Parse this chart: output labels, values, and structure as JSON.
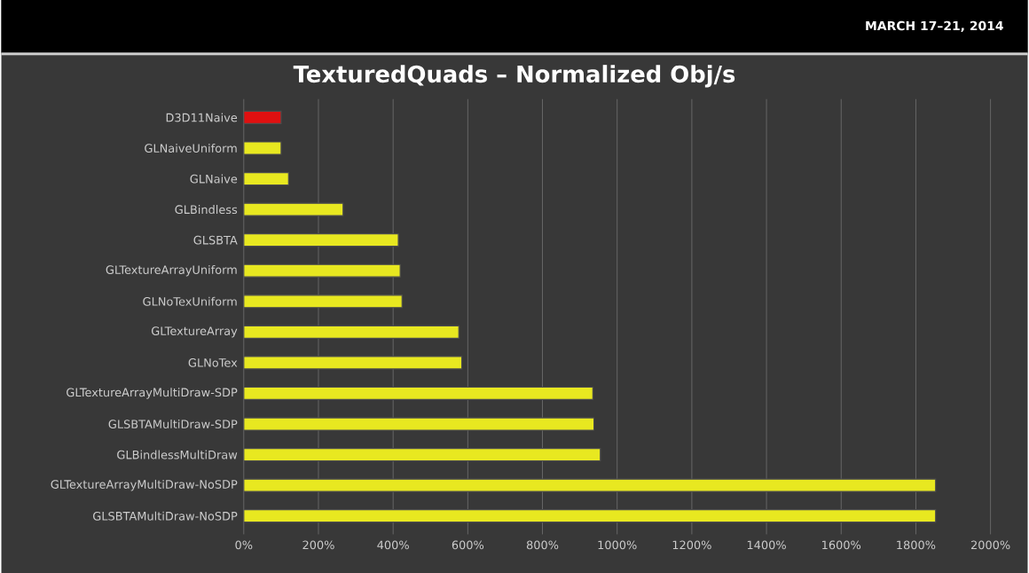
{
  "chart_data": {
    "type": "bar",
    "orientation": "horizontal",
    "title": "TexturedQuads – Normalized Obj/s",
    "annotations": [
      "MARCH 17–21, 2014"
    ],
    "categories": [
      "D3D11Naive",
      "GLNaiveUniform",
      "GLNaive",
      "GLBindless",
      "GLSBTA",
      "GLTextureArrayUniform",
      "GLNoTexUniform",
      "GLTextureArray",
      "GLNoTex",
      "GLTextureArrayMultiDraw-SDP",
      "GLSBTAMultiDraw-SDP",
      "GLBindlessMultiDraw",
      "GLTextureArrayMultiDraw-NoSDP",
      "GLSBTAMultiDraw-NoSDP"
    ],
    "values": [
      100,
      100,
      120,
      266,
      414,
      419,
      424,
      576,
      584,
      935,
      938,
      955,
      1853,
      1853
    ],
    "colors": [
      "#e01010",
      "#e8e820",
      "#e8e820",
      "#e8e820",
      "#e8e820",
      "#e8e820",
      "#e8e820",
      "#e8e820",
      "#e8e820",
      "#e8e820",
      "#e8e820",
      "#e8e820",
      "#e8e820",
      "#e8e820"
    ],
    "xlim": [
      0,
      2000
    ],
    "xticks": [
      {
        "value": 0,
        "label": "0%"
      },
      {
        "value": 200,
        "label": "200%"
      },
      {
        "value": 400,
        "label": "400%"
      },
      {
        "value": 600,
        "label": "600%"
      },
      {
        "value": 800,
        "label": "800%"
      },
      {
        "value": 1000,
        "label": "1000%"
      },
      {
        "value": 1200,
        "label": "1200%"
      },
      {
        "value": 1400,
        "label": "1400%"
      },
      {
        "value": 1600,
        "label": "1600%"
      },
      {
        "value": 1800,
        "label": "1800%"
      },
      {
        "value": 2000,
        "label": "2000%"
      }
    ],
    "grid": "x"
  }
}
